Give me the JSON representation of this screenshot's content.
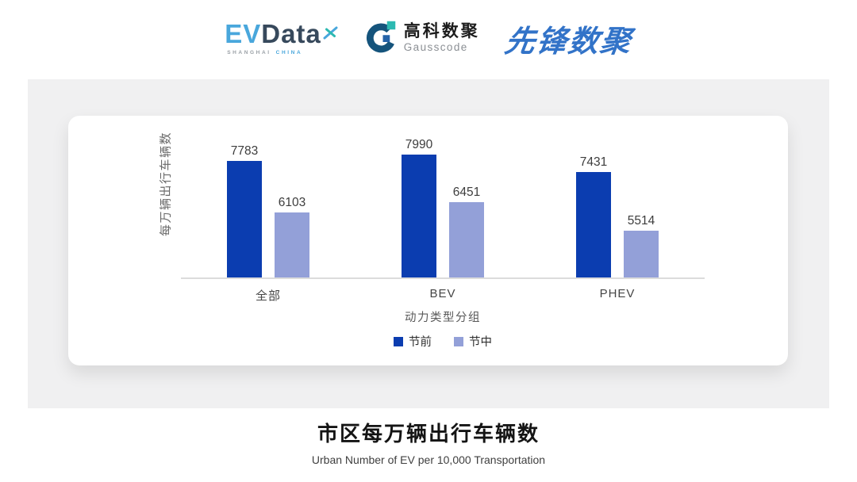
{
  "header": {
    "evdata": {
      "ev": "EV",
      "data": "Data",
      "sub_left": "SHANGHAI",
      "sub_right": "CHINA"
    },
    "gausscode": {
      "cn": "高科数聚",
      "en": "Gausscode"
    },
    "pioneer": {
      "text": "先锋数聚"
    }
  },
  "chart_data": {
    "type": "bar",
    "categories": [
      "全部",
      "BEV",
      "PHEV"
    ],
    "series": [
      {
        "name": "节前",
        "color": "#0b3db0",
        "values": [
          7783,
          7990,
          7431
        ]
      },
      {
        "name": "节中",
        "color": "#93a0d8",
        "values": [
          6103,
          6451,
          5514
        ]
      }
    ],
    "xlabel": "动力类型分组",
    "ylabel": "每万辆出行车辆数",
    "ylim": [
      4000,
      9000
    ],
    "grid": false,
    "legend_position": "bottom",
    "value_labels": true
  },
  "footer": {
    "title": "市区每万辆出行车辆数",
    "subtitle": "Urban Number of EV per 10,000 Transportation"
  }
}
